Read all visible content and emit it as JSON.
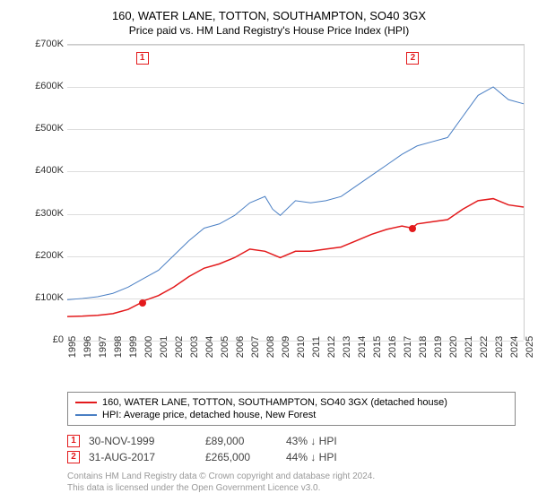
{
  "title": "160, WATER LANE, TOTTON, SOUTHAMPTON, SO40 3GX",
  "subtitle": "Price paid vs. HM Land Registry's House Price Index (HPI)",
  "chart": {
    "type": "line",
    "ylim": [
      0,
      700000
    ],
    "ytick_step": 100000,
    "y_labels": [
      "£0",
      "£100K",
      "£200K",
      "£300K",
      "£400K",
      "£500K",
      "£600K",
      "£700K"
    ],
    "xlim": [
      1995,
      2025
    ],
    "x_labels": [
      "1995",
      "1996",
      "1997",
      "1998",
      "1999",
      "2000",
      "2001",
      "2002",
      "2003",
      "2004",
      "2005",
      "2006",
      "2007",
      "2008",
      "2009",
      "2010",
      "2011",
      "2012",
      "2013",
      "2014",
      "2015",
      "2016",
      "2017",
      "2018",
      "2019",
      "2020",
      "2021",
      "2022",
      "2023",
      "2024",
      "2025"
    ],
    "background_color": "#ffffff",
    "grid_color": "#dddddd",
    "series": [
      {
        "name": "price_paid",
        "label": "160, WATER LANE, TOTTON, SOUTHAMPTON, SO40 3GX (detached house)",
        "color": "#e31a1c",
        "line_width": 1.5,
        "data": [
          [
            1995,
            55000
          ],
          [
            1996,
            56000
          ],
          [
            1997,
            58000
          ],
          [
            1998,
            62000
          ],
          [
            1999,
            72000
          ],
          [
            1999.92,
            89000
          ],
          [
            2000,
            92000
          ],
          [
            2001,
            105000
          ],
          [
            2002,
            125000
          ],
          [
            2003,
            150000
          ],
          [
            2004,
            170000
          ],
          [
            2005,
            180000
          ],
          [
            2006,
            195000
          ],
          [
            2007,
            215000
          ],
          [
            2008,
            210000
          ],
          [
            2009,
            195000
          ],
          [
            2010,
            210000
          ],
          [
            2011,
            210000
          ],
          [
            2012,
            215000
          ],
          [
            2013,
            220000
          ],
          [
            2014,
            235000
          ],
          [
            2015,
            250000
          ],
          [
            2016,
            262000
          ],
          [
            2017,
            270000
          ],
          [
            2017.67,
            265000
          ],
          [
            2018,
            275000
          ],
          [
            2019,
            280000
          ],
          [
            2020,
            285000
          ],
          [
            2021,
            310000
          ],
          [
            2022,
            330000
          ],
          [
            2023,
            335000
          ],
          [
            2024,
            320000
          ],
          [
            2025,
            315000
          ]
        ]
      },
      {
        "name": "hpi",
        "label": "HPI: Average price, detached house, New Forest",
        "color": "#4a7fc4",
        "line_width": 1,
        "data": [
          [
            1995,
            95000
          ],
          [
            1996,
            98000
          ],
          [
            1997,
            102000
          ],
          [
            1998,
            110000
          ],
          [
            1999,
            125000
          ],
          [
            2000,
            145000
          ],
          [
            2001,
            165000
          ],
          [
            2002,
            200000
          ],
          [
            2003,
            235000
          ],
          [
            2004,
            265000
          ],
          [
            2005,
            275000
          ],
          [
            2006,
            295000
          ],
          [
            2007,
            325000
          ],
          [
            2008,
            340000
          ],
          [
            2008.5,
            310000
          ],
          [
            2009,
            295000
          ],
          [
            2010,
            330000
          ],
          [
            2011,
            325000
          ],
          [
            2012,
            330000
          ],
          [
            2013,
            340000
          ],
          [
            2014,
            365000
          ],
          [
            2015,
            390000
          ],
          [
            2016,
            415000
          ],
          [
            2017,
            440000
          ],
          [
            2018,
            460000
          ],
          [
            2019,
            470000
          ],
          [
            2020,
            480000
          ],
          [
            2021,
            530000
          ],
          [
            2022,
            580000
          ],
          [
            2023,
            600000
          ],
          [
            2024,
            570000
          ],
          [
            2025,
            560000
          ]
        ]
      }
    ],
    "sale_markers": [
      {
        "num": "1",
        "x": 1999.92,
        "y": 89000,
        "box_top": true
      },
      {
        "num": "2",
        "x": 2017.67,
        "y": 265000,
        "box_top": true
      }
    ]
  },
  "legend": {
    "items": [
      {
        "color": "#e31a1c",
        "label": "160, WATER LANE, TOTTON, SOUTHAMPTON, SO40 3GX (detached house)"
      },
      {
        "color": "#4a7fc4",
        "label": "HPI: Average price, detached house, New Forest"
      }
    ]
  },
  "sales": [
    {
      "num": "1",
      "date": "30-NOV-1999",
      "price": "£89,000",
      "diff": "43% ↓ HPI"
    },
    {
      "num": "2",
      "date": "31-AUG-2017",
      "price": "£265,000",
      "diff": "44% ↓ HPI"
    }
  ],
  "footer": {
    "line1": "Contains HM Land Registry data © Crown copyright and database right 2024.",
    "line2": "This data is licensed under the Open Government Licence v3.0."
  }
}
